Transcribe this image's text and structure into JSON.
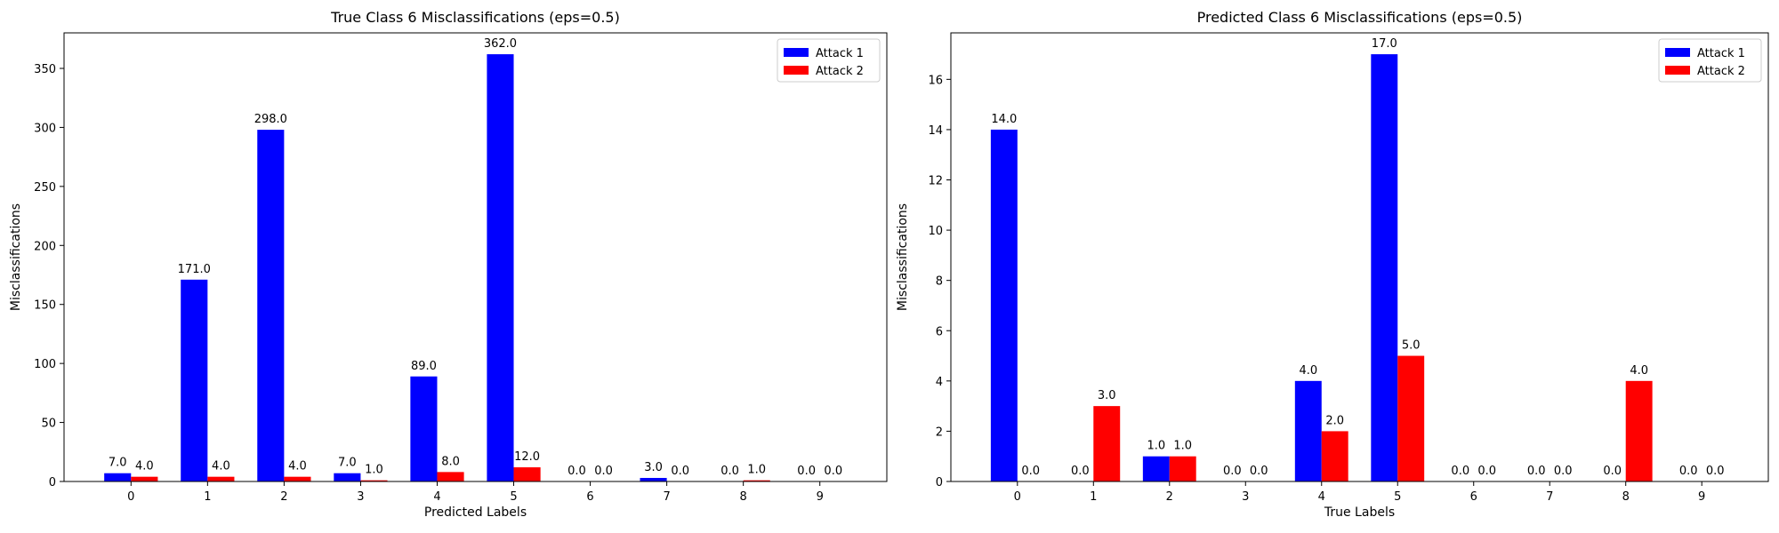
{
  "chart_data": [
    {
      "type": "bar",
      "title": "True Class 6 Misclassifications (eps=0.5)",
      "xlabel": "Predicted Labels",
      "ylabel": "Misclassifications",
      "categories": [
        "0",
        "1",
        "2",
        "3",
        "4",
        "5",
        "6",
        "7",
        "8",
        "9"
      ],
      "series": [
        {
          "name": "Attack 1",
          "color": "#0000ff",
          "values": [
            7.0,
            171.0,
            298.0,
            7.0,
            89.0,
            362.0,
            0.0,
            3.0,
            0.0,
            0.0
          ]
        },
        {
          "name": "Attack 2",
          "color": "#ff0000",
          "values": [
            4.0,
            4.0,
            4.0,
            1.0,
            8.0,
            12.0,
            0.0,
            0.0,
            1.0,
            0.0
          ]
        }
      ],
      "ylim": [
        0,
        380.1
      ],
      "yticks": [
        0,
        50,
        100,
        150,
        200,
        250,
        300,
        350
      ],
      "legend": "top-right",
      "grid": false
    },
    {
      "type": "bar",
      "title": "Predicted Class 6 Misclassifications (eps=0.5)",
      "xlabel": "True Labels",
      "ylabel": "Misclassifications",
      "categories": [
        "0",
        "1",
        "2",
        "3",
        "4",
        "5",
        "6",
        "7",
        "8",
        "9"
      ],
      "series": [
        {
          "name": "Attack 1",
          "color": "#0000ff",
          "values": [
            14.0,
            0.0,
            1.0,
            0.0,
            4.0,
            17.0,
            0.0,
            0.0,
            0.0,
            0.0
          ]
        },
        {
          "name": "Attack 2",
          "color": "#ff0000",
          "values": [
            0.0,
            3.0,
            1.0,
            0.0,
            2.0,
            5.0,
            0.0,
            0.0,
            4.0,
            0.0
          ]
        }
      ],
      "ylim": [
        0,
        17.85
      ],
      "yticks": [
        0,
        2,
        4,
        6,
        8,
        10,
        12,
        14,
        16
      ],
      "legend": "top-right",
      "grid": false
    }
  ]
}
